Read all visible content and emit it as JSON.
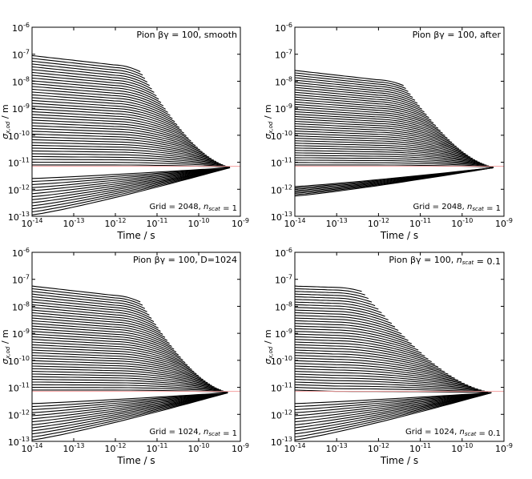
{
  "figure_name": "sigma-vs-time-pion-panels",
  "chart_data": [
    {
      "type": "line",
      "title": "Pion βγ = 100, smooth",
      "grid_note": "Grid = 2048, n_scat = 1",
      "xlabel": "Time / s",
      "ylabel": "σ_{x,od} / m",
      "xscale": "log",
      "yscale": "log",
      "xlim_exp": [
        -14,
        -9
      ],
      "ylim_exp": [
        -13,
        -6
      ],
      "xticks_exp": [
        -14,
        -13,
        -12,
        -11,
        -10,
        -9
      ],
      "yticks_exp": [
        -13,
        -12,
        -11,
        -10,
        -9,
        -8,
        -7,
        -6
      ],
      "reference_line_exp": -11.15,
      "converge_point_exp": [
        -9.25,
        -11.2
      ],
      "upper_lines": {
        "count": 40,
        "start_exp_top": -7.05,
        "start_exp_bottom": -11.1
      },
      "lower_lines": {
        "count": 13,
        "start_exp_top": -11.6,
        "start_exp_bottom": -12.95
      },
      "step_time_exp": -12
    },
    {
      "type": "line",
      "title": "Pion βγ = 100, after",
      "grid_note": "Grid = 2048, n_scat = 1",
      "xlabel": "Time / s",
      "ylabel": "σ_{x,od} / m",
      "xscale": "log",
      "yscale": "log",
      "xlim_exp": [
        -14,
        -9
      ],
      "ylim_exp": [
        -13,
        -6
      ],
      "xticks_exp": [
        -14,
        -13,
        -12,
        -11,
        -10,
        -9
      ],
      "yticks_exp": [
        -13,
        -12,
        -11,
        -10,
        -9,
        -8,
        -7,
        -6
      ],
      "reference_line_exp": -11.15,
      "converge_point_exp": [
        -9.25,
        -11.2
      ],
      "upper_lines": {
        "count": 40,
        "start_exp_top": -7.6,
        "start_exp_bottom": -11.1
      },
      "lower_lines": {
        "count": 8,
        "start_exp_top": -11.9,
        "start_exp_bottom": -12.25
      },
      "step_time_exp": -12
    },
    {
      "type": "line",
      "title": "Pion βγ = 100, D=1024",
      "grid_note": "Grid = 1024, n_scat = 1",
      "xlabel": "Time / s",
      "ylabel": "σ_{x,od} / m",
      "xscale": "log",
      "yscale": "log",
      "xlim_exp": [
        -14,
        -9
      ],
      "ylim_exp": [
        -13,
        -6
      ],
      "xticks_exp": [
        -14,
        -13,
        -12,
        -11,
        -10,
        -9
      ],
      "yticks_exp": [
        -13,
        -12,
        -11,
        -10,
        -9,
        -8,
        -7,
        -6
      ],
      "reference_line_exp": -11.15,
      "converge_point_exp": [
        -9.3,
        -11.2
      ],
      "upper_lines": {
        "count": 40,
        "start_exp_top": -7.25,
        "start_exp_bottom": -11.1
      },
      "lower_lines": {
        "count": 13,
        "start_exp_top": -11.6,
        "start_exp_bottom": -12.95
      },
      "step_time_exp": -12
    },
    {
      "type": "line",
      "title": "Pion βγ = 100, n_scat = 0.1",
      "grid_note": "Grid = 1024, n_scat = 0.1",
      "xlabel": "Time / s",
      "ylabel": "σ_{x,od} / m",
      "xscale": "log",
      "yscale": "log",
      "xlim_exp": [
        -14,
        -9
      ],
      "ylim_exp": [
        -13,
        -6
      ],
      "xticks_exp": [
        -14,
        -13,
        -12,
        -11,
        -10,
        -9
      ],
      "yticks_exp": [
        -13,
        -12,
        -11,
        -10,
        -9,
        -8,
        -7,
        -6
      ],
      "reference_line_exp": -11.15,
      "converge_point_exp": [
        -9.3,
        -11.2
      ],
      "upper_lines": {
        "count": 40,
        "start_exp_top": -7.25,
        "start_exp_bottom": -11.1
      },
      "lower_lines": {
        "count": 13,
        "start_exp_top": -11.6,
        "start_exp_bottom": -12.95
      },
      "step_time_exp": -13
    }
  ],
  "tick_base": "10",
  "colors": {
    "line": "#000000",
    "reference": "#f4a0a0",
    "frame": "#000000"
  }
}
